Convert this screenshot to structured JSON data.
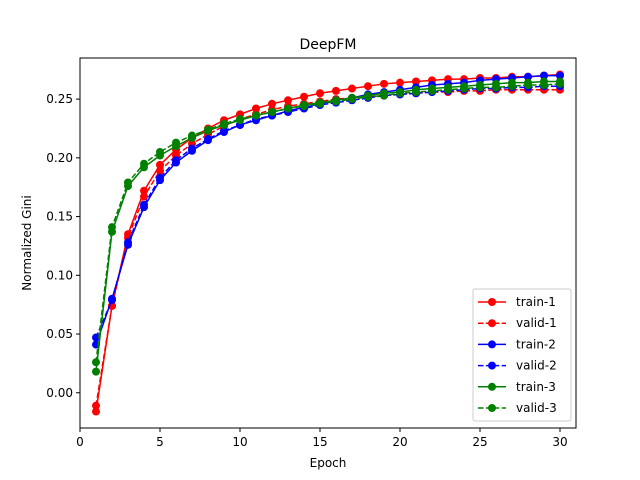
{
  "chart_data": {
    "type": "line",
    "title": "DeepFM",
    "xlabel": "Epoch",
    "ylabel": "Normalized Gini",
    "xlim": [
      0,
      31
    ],
    "ylim": [
      -0.03,
      0.285
    ],
    "xticks": [
      0,
      5,
      10,
      15,
      20,
      25,
      30
    ],
    "yticks": [
      0.0,
      0.05,
      0.1,
      0.15,
      0.2,
      0.25
    ],
    "ytick_labels": [
      "0.00",
      "0.05",
      "0.10",
      "0.15",
      "0.20",
      "0.25"
    ],
    "grid": false,
    "legend_position": "lower-right",
    "x": [
      1,
      2,
      3,
      4,
      5,
      6,
      7,
      8,
      9,
      10,
      11,
      12,
      13,
      14,
      15,
      16,
      17,
      18,
      19,
      20,
      21,
      22,
      23,
      24,
      25,
      26,
      27,
      28,
      29,
      30
    ],
    "series": [
      {
        "name": "train-1",
        "color": "#ff0000",
        "linestyle": "solid",
        "values": [
          -0.016,
          0.074,
          0.135,
          0.172,
          0.194,
          0.207,
          0.217,
          0.225,
          0.232,
          0.237,
          0.242,
          0.246,
          0.249,
          0.252,
          0.255,
          0.257,
          0.259,
          0.261,
          0.263,
          0.264,
          0.265,
          0.266,
          0.267,
          0.267,
          0.268,
          0.268,
          0.269,
          0.269,
          0.27,
          0.271
        ]
      },
      {
        "name": "valid-1",
        "color": "#ff0000",
        "linestyle": "dashed",
        "values": [
          -0.011,
          0.074,
          0.132,
          0.167,
          0.189,
          0.202,
          0.212,
          0.22,
          0.227,
          0.233,
          0.237,
          0.241,
          0.244,
          0.246,
          0.248,
          0.25,
          0.251,
          0.252,
          0.253,
          0.254,
          0.255,
          0.256,
          0.256,
          0.257,
          0.257,
          0.258,
          0.258,
          0.258,
          0.258,
          0.258
        ]
      },
      {
        "name": "train-2",
        "color": "#0000ff",
        "linestyle": "solid",
        "values": [
          0.041,
          0.08,
          0.126,
          0.158,
          0.181,
          0.196,
          0.206,
          0.215,
          0.222,
          0.228,
          0.232,
          0.236,
          0.24,
          0.243,
          0.246,
          0.249,
          0.251,
          0.254,
          0.256,
          0.258,
          0.26,
          0.262,
          0.263,
          0.264,
          0.266,
          0.267,
          0.268,
          0.269,
          0.27,
          0.27
        ]
      },
      {
        "name": "valid-2",
        "color": "#0000ff",
        "linestyle": "dashed",
        "values": [
          0.047,
          0.079,
          0.128,
          0.16,
          0.183,
          0.198,
          0.208,
          0.216,
          0.223,
          0.228,
          0.233,
          0.236,
          0.239,
          0.242,
          0.245,
          0.247,
          0.249,
          0.251,
          0.253,
          0.254,
          0.255,
          0.256,
          0.257,
          0.258,
          0.259,
          0.259,
          0.26,
          0.26,
          0.261,
          0.261
        ]
      },
      {
        "name": "train-3",
        "color": "#008000",
        "linestyle": "solid",
        "values": [
          0.018,
          0.137,
          0.176,
          0.192,
          0.202,
          0.21,
          0.217,
          0.223,
          0.228,
          0.232,
          0.236,
          0.239,
          0.242,
          0.245,
          0.247,
          0.249,
          0.251,
          0.253,
          0.255,
          0.256,
          0.258,
          0.259,
          0.26,
          0.261,
          0.262,
          0.263,
          0.264,
          0.264,
          0.265,
          0.265
        ]
      },
      {
        "name": "valid-3",
        "color": "#008000",
        "linestyle": "dashed",
        "values": [
          0.026,
          0.141,
          0.179,
          0.195,
          0.205,
          0.213,
          0.219,
          0.224,
          0.229,
          0.233,
          0.236,
          0.239,
          0.242,
          0.244,
          0.246,
          0.248,
          0.25,
          0.252,
          0.253,
          0.255,
          0.256,
          0.257,
          0.258,
          0.259,
          0.26,
          0.26,
          0.261,
          0.262,
          0.262,
          0.263
        ]
      }
    ]
  }
}
